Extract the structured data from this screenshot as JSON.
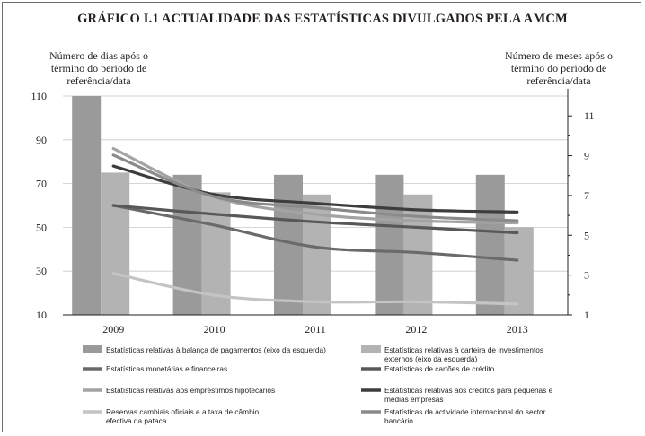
{
  "chart_data": {
    "type": "bar+line",
    "title": "GRÁFICO I.1 ACTUALIDADE DAS ESTATÍSTICAS DIVULGADOS PELA AMCM",
    "ylabel_left": "Número de dias após o término do período de referência/data",
    "ylabel_right": "Número de meses após o término do período de referência/data",
    "categories": [
      "2009",
      "2010",
      "2011",
      "2012",
      "2013"
    ],
    "ylim_left": [
      10,
      110
    ],
    "yticks_left": [
      "10",
      "30",
      "50",
      "70",
      "90",
      "110"
    ],
    "ylim_right": [
      1,
      12
    ],
    "yticks_right": [
      "1",
      "3",
      "5",
      "7",
      "9",
      "11"
    ],
    "bar_series": [
      {
        "name": "Estatísticas relativas à balança de pagamentos (eixo da esquerda)",
        "axis": "left",
        "color": "#9a9a9a",
        "values": [
          110,
          74,
          74,
          74,
          74
        ]
      },
      {
        "name": "Estatísticas relativas à carteira de investimentos externos (eixo da esquerda)",
        "axis": "left",
        "color": "#b3b3b3",
        "values": [
          75,
          66,
          65,
          65,
          50
        ]
      }
    ],
    "line_series": [
      {
        "name": "Estatísticas monetárias e financeiras",
        "axis": "left",
        "color": "#6a6a6a",
        "width": 3.2,
        "values": [
          60,
          51,
          41,
          38.5,
          35
        ]
      },
      {
        "name": "Estatísticas de cartões de crédito",
        "axis": "left",
        "color": "#585858",
        "width": 3.2,
        "values": [
          60,
          56,
          52.5,
          50,
          47.5
        ]
      },
      {
        "name": "Estatísticas relativas aos empréstimos hipotecários",
        "axis": "left",
        "color": "#a3a3a3",
        "width": 3.2,
        "values": [
          86,
          64,
          56,
          53,
          52
        ]
      },
      {
        "name": "Estatísticas relativas aos créditos para pequenas e médias empresas",
        "axis": "left",
        "color": "#3d3d3d",
        "width": 3.2,
        "values": [
          78,
          65,
          61,
          58,
          57
        ]
      },
      {
        "name": "Reservas cambiais oficiais e a taxa de câmbio efectiva da pataca",
        "axis": "left",
        "color": "#c4c4c4",
        "width": 3.2,
        "values": [
          29,
          19,
          16,
          16,
          15
        ]
      },
      {
        "name": "Estatísticas da actividade internacional do sector bancário",
        "axis": "left",
        "color": "#8a8a8a",
        "width": 3.2,
        "values": [
          83,
          64,
          59,
          55,
          53
        ]
      }
    ],
    "legend": [
      {
        "label": "Estatísticas relativas à balança de pagamentos (eixo da esquerda)",
        "kind": "bar",
        "color": "#9a9a9a"
      },
      {
        "label": "Estatísticas relativas à carteira de investimentos",
        "label2": "externos (eixo da esquerda)",
        "kind": "bar",
        "color": "#b3b3b3"
      },
      {
        "label": "Estatísticas monetárias e financeiras",
        "kind": "line",
        "color": "#6a6a6a"
      },
      {
        "label": "Estatísticas de cartões de crédito",
        "kind": "line",
        "color": "#585858"
      },
      {
        "label": "Estatísticas relativas aos empréstimos hipotecários",
        "kind": "line",
        "color": "#a3a3a3"
      },
      {
        "label": "Estatísticas relativas aos créditos para pequenas e",
        "label2": "médias empresas",
        "kind": "line",
        "color": "#3d3d3d"
      },
      {
        "label": "Reservas cambiais oficiais e a taxa de câmbio",
        "label2": "efectiva da pataca",
        "kind": "line",
        "color": "#c4c4c4"
      },
      {
        "label": "Estatísticas da actividade internacional do sector",
        "label2": "bancário",
        "kind": "line",
        "color": "#8a8a8a"
      }
    ]
  }
}
